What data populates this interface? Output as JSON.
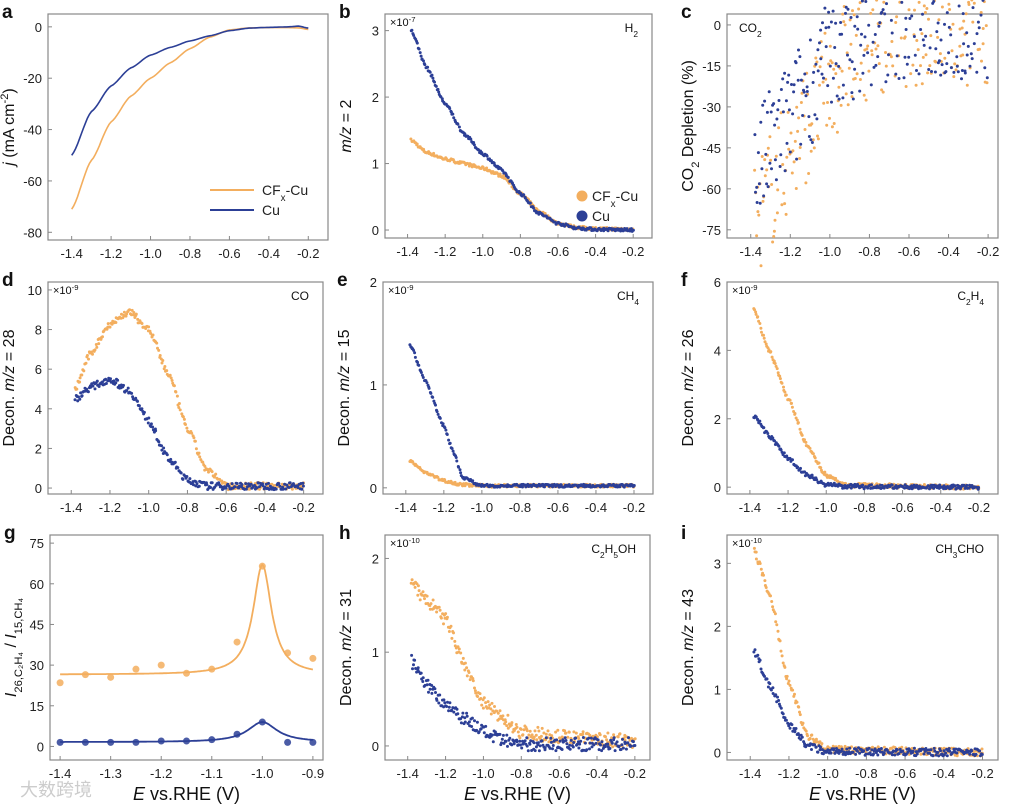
{
  "colors": {
    "cfx": "#F3AE5E",
    "cu": "#2C3F96",
    "axis": "#888888"
  },
  "legend": {
    "cfx": "CFx-Cu",
    "cu": "Cu"
  },
  "watermark": "大数跨境",
  "chart_data": [
    {
      "letter": "a",
      "type": "line",
      "xlim": [
        -1.52,
        -0.1
      ],
      "ylim": [
        -83,
        5
      ],
      "xticks": [
        -1.4,
        -1.2,
        -1.0,
        -0.8,
        -0.6,
        -0.4,
        -0.2
      ],
      "xtick_labels": [
        "-1.4",
        "-1.2",
        "-1.0",
        "-0.8",
        "-0.6",
        "-0.4",
        "-0.2"
      ],
      "yticks": [
        0,
        -20,
        -40,
        -60,
        -80
      ],
      "ytick_labels": [
        "0",
        "-20",
        "-40",
        "-60",
        "-80"
      ],
      "ylabel": [
        {
          "t": "j",
          "i": true
        },
        {
          "t": " (mA cm"
        },
        {
          "t": "-2",
          "sup": true
        },
        {
          "t": ")"
        }
      ],
      "xlabel": "",
      "scale": "",
      "species": "",
      "legend": "lines-bottom-right",
      "series": [
        {
          "name": "CFx-Cu",
          "key": "cfx",
          "x": [
            -1.4,
            -1.3,
            -1.2,
            -1.1,
            -1.0,
            -0.9,
            -0.8,
            -0.7,
            -0.6,
            -0.5,
            -0.4,
            -0.3,
            -0.25,
            -0.2
          ],
          "y": [
            -71,
            -52,
            -37,
            -27,
            -20,
            -14,
            -8.5,
            -4,
            -1.2,
            -0.4,
            -0.3,
            -0.3,
            -0.4,
            -1
          ]
        },
        {
          "name": "Cu",
          "key": "cu",
          "x": [
            -1.4,
            -1.3,
            -1.2,
            -1.1,
            -1.0,
            -0.9,
            -0.8,
            -0.7,
            -0.6,
            -0.5,
            -0.4,
            -0.3,
            -0.25,
            -0.2
          ],
          "y": [
            -50,
            -33,
            -23,
            -16,
            -11,
            -8,
            -5.5,
            -3.5,
            -1.5,
            -0.5,
            -0.2,
            0,
            0.3,
            -0.5
          ]
        }
      ]
    },
    {
      "letter": "b",
      "type": "scatter",
      "noise": 0.02,
      "xlim": [
        -1.52,
        -0.1
      ],
      "ylim": [
        -0.12,
        3.25
      ],
      "xticks": [
        -1.4,
        -1.2,
        -1.0,
        -0.8,
        -0.6,
        -0.4,
        -0.2
      ],
      "xtick_labels": [
        "-1.4",
        "-1.2",
        "-1.0",
        "-0.8",
        "-0.6",
        "-0.4",
        "-0.2"
      ],
      "yticks": [
        0,
        1,
        2,
        3
      ],
      "ytick_labels": [
        "0",
        "1",
        "2",
        "3"
      ],
      "ylabel": [
        {
          "t": "m/z",
          "i": true
        },
        {
          "t": " = 2"
        }
      ],
      "xlabel": "",
      "scale": {
        "base": "×10",
        "exp": "-7"
      },
      "species": [
        {
          "t": "H"
        },
        {
          "t": "2",
          "sub": true
        }
      ],
      "legend": "dots-bottom-right",
      "series": [
        {
          "name": "CFx-Cu",
          "key": "cfx",
          "x": [
            -1.38,
            -1.3,
            -1.2,
            -1.1,
            -1.0,
            -0.9,
            -0.8,
            -0.7,
            -0.6,
            -0.5,
            -0.4,
            -0.2
          ],
          "y": [
            1.35,
            1.17,
            1.07,
            1.0,
            0.93,
            0.82,
            0.55,
            0.28,
            0.1,
            0.04,
            0.02,
            0.01
          ]
        },
        {
          "name": "Cu",
          "key": "cu",
          "x": [
            -1.38,
            -1.3,
            -1.2,
            -1.1,
            -1.0,
            -0.9,
            -0.8,
            -0.7,
            -0.6,
            -0.5,
            -0.4,
            -0.2
          ],
          "y": [
            3.0,
            2.45,
            1.9,
            1.45,
            1.15,
            0.9,
            0.55,
            0.25,
            0.1,
            0.03,
            0.01,
            0
          ]
        }
      ]
    },
    {
      "letter": "c",
      "type": "scatter",
      "noise": 0.8,
      "xlim": [
        -1.52,
        -0.15
      ],
      "ylim": [
        -78,
        4
      ],
      "xticks": [
        -1.4,
        -1.2,
        -1.0,
        -0.8,
        -0.6,
        -0.4,
        -0.2
      ],
      "xtick_labels": [
        "-1.4",
        "-1.2",
        "-1.0",
        "-0.8",
        "-0.6",
        "-0.4",
        "-0.2"
      ],
      "yticks": [
        0,
        -15,
        -30,
        -45,
        -60,
        -75
      ],
      "ytick_labels": [
        "0",
        "-15",
        "-30",
        "-45",
        "-60",
        "-75"
      ],
      "ylabel": [
        {
          "t": "CO"
        },
        {
          "t": "2",
          "sub": true
        },
        {
          "t": " Depletion (%)"
        }
      ],
      "xlabel": "",
      "scale": "",
      "species": [
        {
          "t": "CO"
        },
        {
          "t": "2",
          "sub": true
        }
      ],
      "species_pos": "left",
      "legend": "",
      "series": [
        {
          "name": "CFx-Cu",
          "key": "cfx",
          "x": [
            -1.38,
            -1.3,
            -1.2,
            -1.1,
            -1.0,
            -0.9,
            -0.8,
            -0.7,
            -0.6,
            -0.4,
            -0.2
          ],
          "y": [
            -71,
            -60,
            -47,
            -34,
            -22,
            -11,
            -5,
            -2,
            -1,
            -0.5,
            -1
          ]
        },
        {
          "name": "Cu",
          "key": "cu",
          "x": [
            -1.38,
            -1.3,
            -1.2,
            -1.1,
            -1.0,
            -0.9,
            -0.8,
            -0.7,
            -0.6,
            -0.5,
            -0.4,
            -0.2
          ],
          "y": [
            -54,
            -45,
            -34,
            -22,
            -13,
            -6,
            -2,
            0,
            2,
            1.5,
            1,
            0.5
          ]
        }
      ]
    },
    {
      "letter": "d",
      "type": "scatter",
      "noise": 0.05,
      "xlim": [
        -1.52,
        -0.1
      ],
      "ylim": [
        -0.3,
        10.4
      ],
      "xticks": [
        -1.4,
        -1.2,
        -1.0,
        -0.8,
        -0.6,
        -0.4,
        -0.2
      ],
      "xtick_labels": [
        "-1.4",
        "-1.2",
        "-1.0",
        "-0.8",
        "-0.6",
        "-0.4",
        "-0.2"
      ],
      "yticks": [
        0,
        2,
        4,
        6,
        8,
        10
      ],
      "ytick_labels": [
        "0",
        "2",
        "4",
        "6",
        "8",
        "10"
      ],
      "ylabel": [
        {
          "t": "Decon. "
        },
        {
          "t": "m/z",
          "i": true
        },
        {
          "t": " = 28"
        }
      ],
      "xlabel": "",
      "scale": {
        "base": "×10",
        "exp": "-9"
      },
      "species": [
        {
          "t": "CO"
        }
      ],
      "legend": "",
      "series": [
        {
          "name": "CFx-Cu",
          "key": "cfx",
          "x": [
            -1.38,
            -1.3,
            -1.2,
            -1.1,
            -1.0,
            -0.9,
            -0.8,
            -0.7,
            -0.6,
            -0.2
          ],
          "y": [
            5.0,
            6.8,
            8.3,
            8.9,
            8.0,
            5.8,
            3.0,
            0.9,
            0.1,
            0.1
          ]
        },
        {
          "name": "Cu",
          "key": "cu",
          "x": [
            -1.38,
            -1.3,
            -1.2,
            -1.1,
            -1.0,
            -0.9,
            -0.8,
            -0.7,
            -0.2
          ],
          "y": [
            4.5,
            5.1,
            5.5,
            4.9,
            3.4,
            1.5,
            0.4,
            0.1,
            0.1
          ]
        }
      ]
    },
    {
      "letter": "e",
      "type": "scatter",
      "noise": 0.02,
      "xlim": [
        -1.52,
        -0.1
      ],
      "ylim": [
        -0.06,
        2.0
      ],
      "xticks": [
        -1.4,
        -1.2,
        -1.0,
        -0.8,
        -0.6,
        -0.4,
        -0.2
      ],
      "xtick_labels": [
        "-1.4",
        "-1.2",
        "-1.0",
        "-0.8",
        "-0.6",
        "-0.4",
        "-0.2"
      ],
      "yticks": [
        0,
        1,
        2
      ],
      "ytick_labels": [
        "0",
        "1",
        "2"
      ],
      "ylabel": [
        {
          "t": "Decon. "
        },
        {
          "t": "m/z",
          "i": true
        },
        {
          "t": " = 15"
        }
      ],
      "xlabel": "",
      "scale": {
        "base": "×10",
        "exp": "-9"
      },
      "species": [
        {
          "t": "CH"
        },
        {
          "t": "4",
          "sub": true
        }
      ],
      "legend": "",
      "series": [
        {
          "name": "CFx-Cu",
          "key": "cfx",
          "x": [
            -1.38,
            -1.3,
            -1.2,
            -1.1,
            -1.0,
            -0.2
          ],
          "y": [
            0.27,
            0.15,
            0.07,
            0.03,
            0.02,
            0.02
          ]
        },
        {
          "name": "Cu",
          "key": "cu",
          "x": [
            -1.38,
            -1.3,
            -1.2,
            -1.15,
            -1.1,
            -1.0,
            -0.2
          ],
          "y": [
            1.4,
            1.05,
            0.6,
            0.35,
            0.1,
            0.02,
            0.02
          ]
        }
      ]
    },
    {
      "letter": "f",
      "type": "scatter",
      "noise": 0.03,
      "xlim": [
        -1.52,
        -0.1
      ],
      "ylim": [
        -0.2,
        6.0
      ],
      "xticks": [
        -1.4,
        -1.2,
        -1.0,
        -0.8,
        -0.6,
        -0.4,
        -0.2
      ],
      "xtick_labels": [
        "-1.4",
        "-1.2",
        "-1.0",
        "-0.8",
        "-0.6",
        "-0.4",
        "-0.2"
      ],
      "yticks": [
        0,
        2,
        4,
        6
      ],
      "ytick_labels": [
        "0",
        "2",
        "4",
        "6"
      ],
      "ylabel": [
        {
          "t": "Decon. "
        },
        {
          "t": "m/z",
          "i": true
        },
        {
          "t": " = 26"
        }
      ],
      "xlabel": "",
      "scale": {
        "base": "×10",
        "exp": "-9"
      },
      "species": [
        {
          "t": "C"
        },
        {
          "t": "2",
          "sub": true
        },
        {
          "t": "H"
        },
        {
          "t": "4",
          "sub": true
        }
      ],
      "legend": "",
      "series": [
        {
          "name": "CFx-Cu",
          "key": "cfx",
          "x": [
            -1.38,
            -1.3,
            -1.2,
            -1.1,
            -1.0,
            -0.9,
            -0.2
          ],
          "y": [
            5.2,
            4.0,
            2.6,
            1.2,
            0.35,
            0.05,
            0
          ]
        },
        {
          "name": "Cu",
          "key": "cu",
          "x": [
            -1.38,
            -1.3,
            -1.2,
            -1.1,
            -1.0,
            -0.9,
            -0.2
          ],
          "y": [
            2.1,
            1.5,
            0.85,
            0.35,
            0.08,
            0.02,
            0
          ]
        }
      ]
    },
    {
      "letter": "g",
      "type": "scatter+fit",
      "xlim": [
        -1.42,
        -0.88
      ],
      "ylim": [
        -5,
        78
      ],
      "xticks": [
        -1.4,
        -1.3,
        -1.2,
        -1.1,
        -1.0,
        -0.9
      ],
      "xtick_labels": [
        "-1.4",
        "-1.3",
        "-1.2",
        "-1.1",
        "-1.0",
        "-0.9"
      ],
      "yticks": [
        0,
        15,
        30,
        45,
        60,
        75
      ],
      "ytick_labels": [
        "0",
        "15",
        "30",
        "45",
        "60",
        "75"
      ],
      "ylabel": [
        {
          "t": "I",
          "i": true
        },
        {
          "t": "26,C₂H₄",
          "sub": true
        },
        {
          "t": " / "
        },
        {
          "t": "I",
          "i": true
        },
        {
          "t": "15,CH₄",
          "sub": true
        }
      ],
      "xlabel": [
        {
          "t": "E",
          "i": true
        },
        {
          "t": " vs.RHE (V)"
        }
      ],
      "scale": "",
      "species": "",
      "legend": "",
      "series": [
        {
          "name": "CFx-Cu",
          "key": "cfx",
          "x": [
            -1.4,
            -1.35,
            -1.3,
            -1.25,
            -1.2,
            -1.15,
            -1.1,
            -1.05,
            -1.0,
            -0.95,
            -0.9
          ],
          "y": [
            23.5,
            26.5,
            25.5,
            28.5,
            30,
            27,
            28.5,
            38.5,
            66.5,
            34.5,
            32.5
          ],
          "fit": {
            "model": "lorentzian",
            "y0": 26.5,
            "A": 40.5,
            "xc": -1.0,
            "w": 0.022
          }
        },
        {
          "name": "Cu",
          "key": "cu",
          "x": [
            -1.4,
            -1.35,
            -1.3,
            -1.25,
            -1.2,
            -1.15,
            -1.1,
            -1.05,
            -1.0,
            -0.95,
            -0.9
          ],
          "y": [
            1.5,
            1.5,
            1.5,
            1.5,
            2,
            2,
            2.5,
            4.5,
            9,
            1.5,
            1.5
          ],
          "fit": {
            "model": "lorentzian",
            "y0": 1.6,
            "A": 7.4,
            "xc": -1.0,
            "w": 0.035
          }
        }
      ]
    },
    {
      "letter": "h",
      "type": "scatter",
      "noise": 0.09,
      "xlim": [
        -1.52,
        -0.12
      ],
      "ylim": [
        -0.15,
        2.25
      ],
      "xticks": [
        -1.4,
        -1.2,
        -1.0,
        -0.8,
        -0.6,
        -0.4,
        -0.2
      ],
      "xtick_labels": [
        "-1.4",
        "-1.2",
        "-1.0",
        "-0.8",
        "-0.6",
        "-0.4",
        "-0.2"
      ],
      "yticks": [
        0,
        1,
        2
      ],
      "ytick_labels": [
        "0",
        "1",
        "2"
      ],
      "ylabel": [
        {
          "t": "Decon. "
        },
        {
          "t": "m/z",
          "i": true
        },
        {
          "t": " = 31"
        }
      ],
      "xlabel": [
        {
          "t": "E",
          "i": true
        },
        {
          "t": " vs.RHE (V)"
        }
      ],
      "scale": {
        "base": "×10",
        "exp": "-10"
      },
      "species": [
        {
          "t": "C"
        },
        {
          "t": "2",
          "sub": true
        },
        {
          "t": "H"
        },
        {
          "t": "5",
          "sub": true
        },
        {
          "t": "OH"
        }
      ],
      "legend": "",
      "series": [
        {
          "name": "CFx-Cu",
          "key": "cfx",
          "x": [
            -1.38,
            -1.3,
            -1.2,
            -1.1,
            -1.0,
            -0.9,
            -0.8,
            -0.6,
            -0.2
          ],
          "y": [
            1.72,
            1.55,
            1.35,
            0.85,
            0.45,
            0.3,
            0.15,
            0.1,
            0.05
          ]
        },
        {
          "name": "Cu",
          "key": "cu",
          "x": [
            -1.38,
            -1.3,
            -1.2,
            -1.1,
            -1.0,
            -0.9,
            -0.8,
            -0.2
          ],
          "y": [
            0.9,
            0.65,
            0.45,
            0.3,
            0.15,
            0.05,
            0.02,
            0.02
          ]
        }
      ]
    },
    {
      "letter": "i",
      "type": "scatter",
      "noise": 0.05,
      "xlim": [
        -1.52,
        -0.12
      ],
      "ylim": [
        -0.12,
        3.45
      ],
      "xticks": [
        -1.4,
        -1.2,
        -1.0,
        -0.8,
        -0.6,
        -0.4,
        -0.2
      ],
      "xtick_labels": [
        "-1.4",
        "-1.2",
        "-1.0",
        "-0.8",
        "-0.6",
        "-0.4",
        "-0.2"
      ],
      "yticks": [
        0,
        1,
        2,
        3
      ],
      "ytick_labels": [
        "0",
        "1",
        "2",
        "3"
      ],
      "ylabel": [
        {
          "t": "Decon. "
        },
        {
          "t": "m/z",
          "i": true
        },
        {
          "t": " = 43"
        }
      ],
      "xlabel": [
        {
          "t": "E",
          "i": true
        },
        {
          "t": " vs.RHE (V)"
        }
      ],
      "scale": {
        "base": "×10",
        "exp": "-10"
      },
      "species": [
        {
          "t": "CH"
        },
        {
          "t": "3",
          "sub": true
        },
        {
          "t": "CHO"
        }
      ],
      "legend": "",
      "series": [
        {
          "name": "CFx-Cu",
          "key": "cfx",
          "x": [
            -1.38,
            -1.3,
            -1.2,
            -1.1,
            -1.0,
            -0.2
          ],
          "y": [
            3.2,
            2.5,
            1.1,
            0.25,
            0.05,
            0
          ]
        },
        {
          "name": "Cu",
          "key": "cu",
          "x": [
            -1.38,
            -1.3,
            -1.2,
            -1.1,
            -1.0,
            -0.2
          ],
          "y": [
            1.6,
            1.05,
            0.45,
            0.1,
            0.02,
            0
          ]
        }
      ]
    }
  ]
}
